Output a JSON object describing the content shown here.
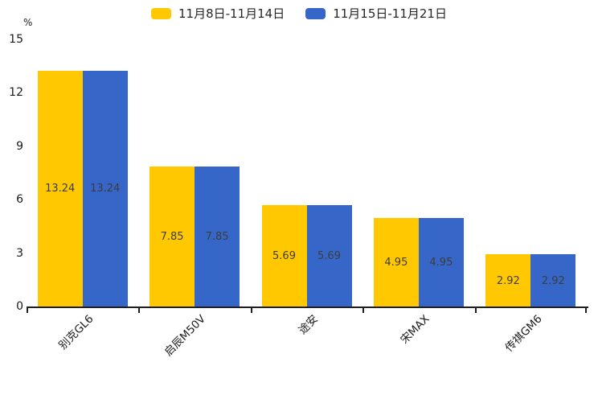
{
  "chart_data": {
    "type": "bar",
    "title": "",
    "categories": [
      "别克GL6",
      "启辰M50V",
      "途安",
      "宋MAX",
      "传祺GM6"
    ],
    "series": [
      {
        "name": "11月8日-11月14日",
        "color": "#FFC800",
        "values": [
          13.24,
          7.85,
          5.69,
          4.95,
          2.92
        ]
      },
      {
        "name": "11月15日-11月21日",
        "color": "#3666C8",
        "values": [
          13.24,
          7.85,
          5.69,
          4.95,
          2.92
        ]
      }
    ],
    "xlabel": "",
    "ylabel": "%",
    "ylim": [
      0,
      15
    ],
    "yticks": [
      0,
      3,
      6,
      9,
      12,
      15
    ],
    "grid": false,
    "legend_position": "top",
    "value_labels": true,
    "value_label_format": "2-decimals",
    "x_label_rotation_deg": 45
  },
  "colors": {
    "axis": "#1f1f1f",
    "tick_text": "#1a1a1a",
    "bar_value_text": "#3d3d3d",
    "background": "#ffffff"
  }
}
